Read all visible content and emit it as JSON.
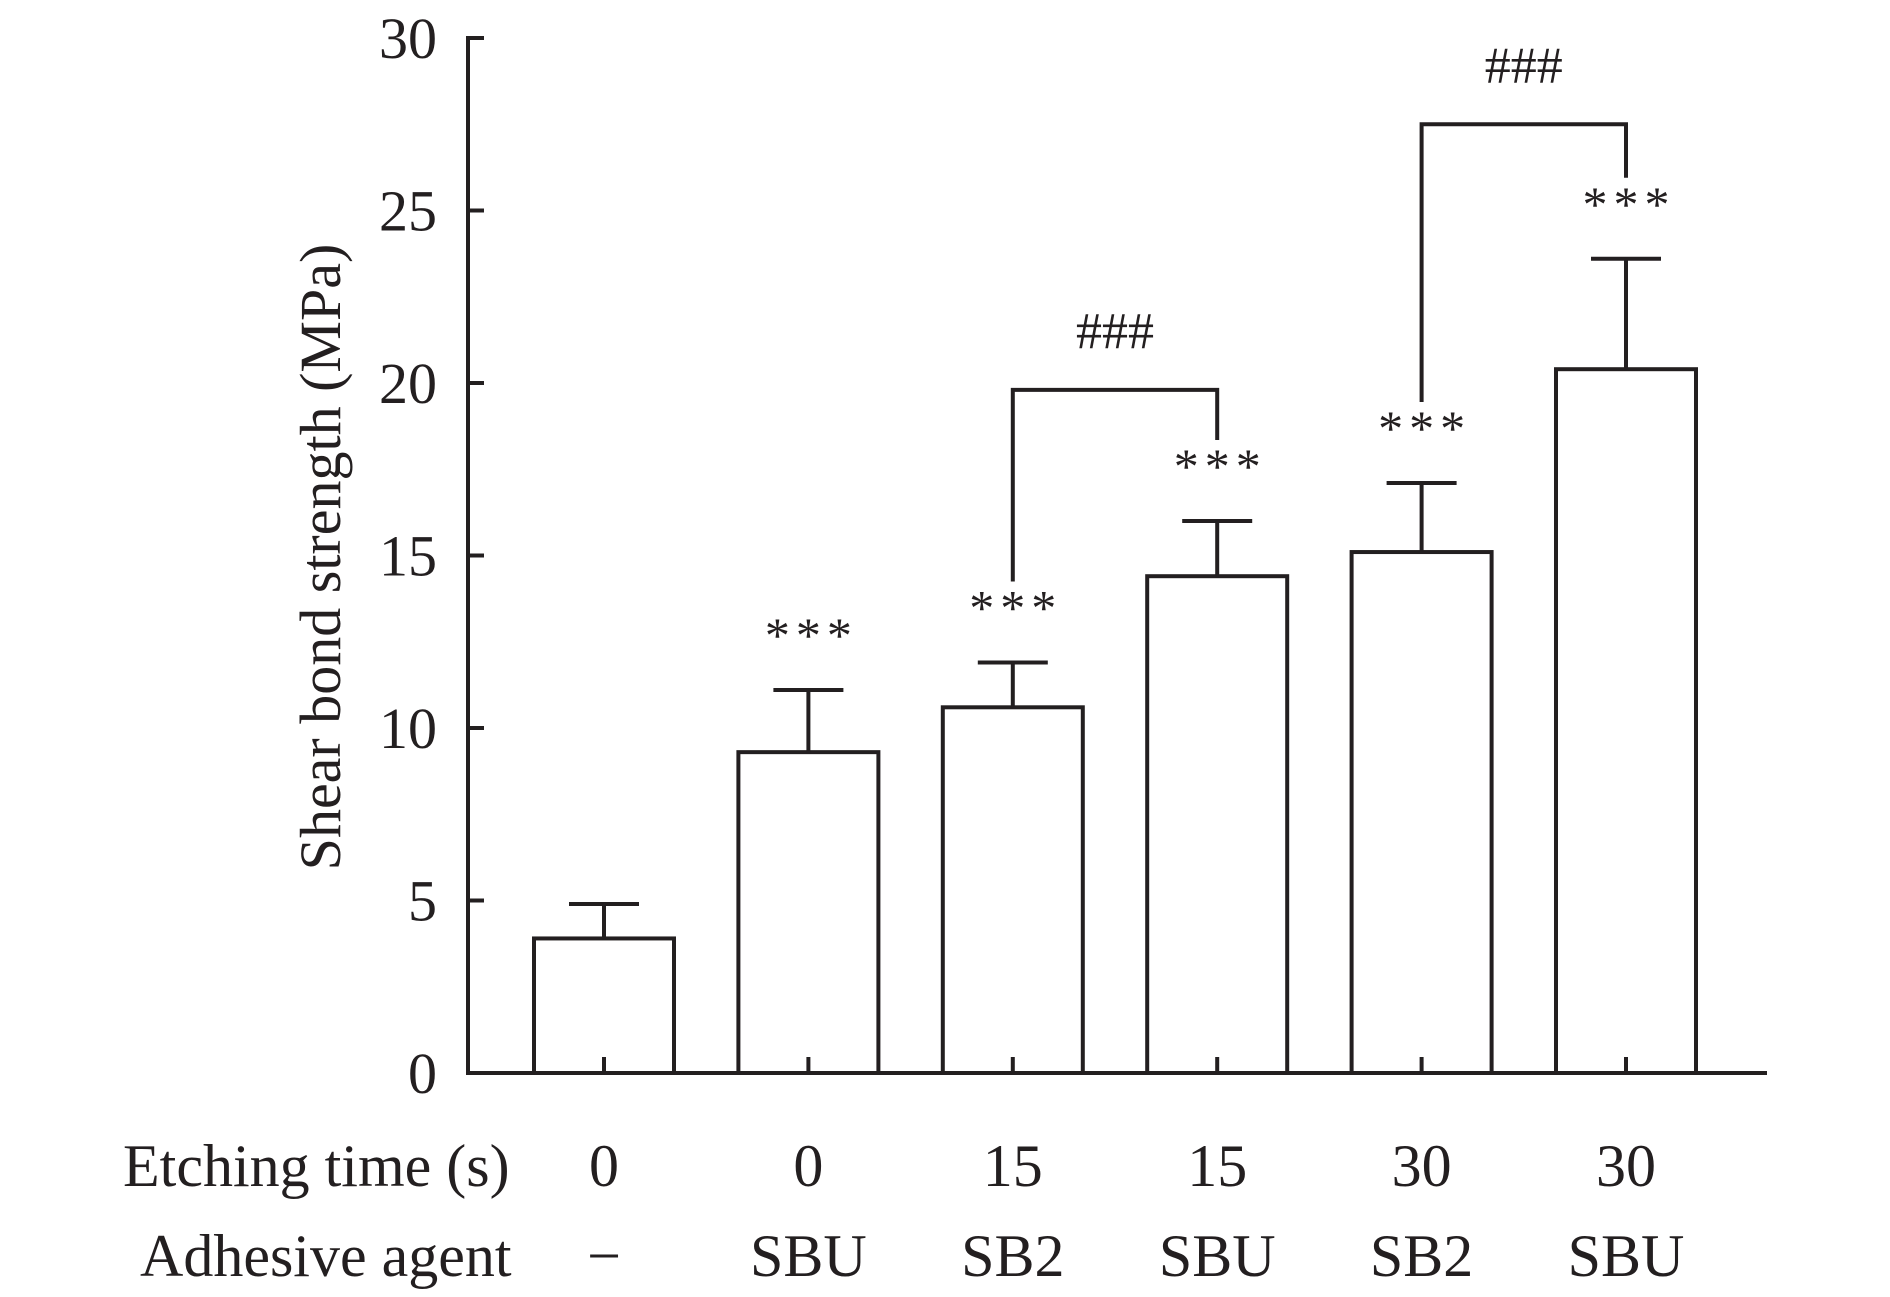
{
  "chart_data": {
    "type": "bar",
    "title": "",
    "ylabel": "Shear bond strength (MPa)",
    "xlabel": "",
    "ylim": [
      0,
      30
    ],
    "yticks": [
      0,
      5,
      10,
      15,
      20,
      25,
      30
    ],
    "grid": false,
    "legend": null,
    "row_labels": [
      "Etching time (s)",
      "Adhesive agent"
    ],
    "categories": [
      {
        "etching_time": "0",
        "adhesive": "−"
      },
      {
        "etching_time": "0",
        "adhesive": "SBU"
      },
      {
        "etching_time": "15",
        "adhesive": "SB2"
      },
      {
        "etching_time": "15",
        "adhesive": "SBU"
      },
      {
        "etching_time": "30",
        "adhesive": "SB2"
      },
      {
        "etching_time": "30",
        "adhesive": "SBU"
      }
    ],
    "series": [
      {
        "name": "Shear bond strength",
        "values": [
          3.9,
          9.3,
          10.6,
          14.4,
          15.1,
          20.4
        ],
        "error_upper": [
          1.0,
          1.8,
          1.3,
          1.6,
          2.0,
          3.2
        ]
      }
    ],
    "significance": [
      "",
      "***",
      "***",
      "***",
      "***",
      "***"
    ],
    "comparisons": [
      {
        "from": 2,
        "to": 3,
        "label": "###",
        "level": 19.8
      },
      {
        "from": 4,
        "to": 5,
        "label": "###",
        "level": 27.5
      }
    ],
    "colors": {
      "bar_fill": "#ffffff",
      "stroke": "#231f20",
      "background": "#ffffff"
    }
  }
}
